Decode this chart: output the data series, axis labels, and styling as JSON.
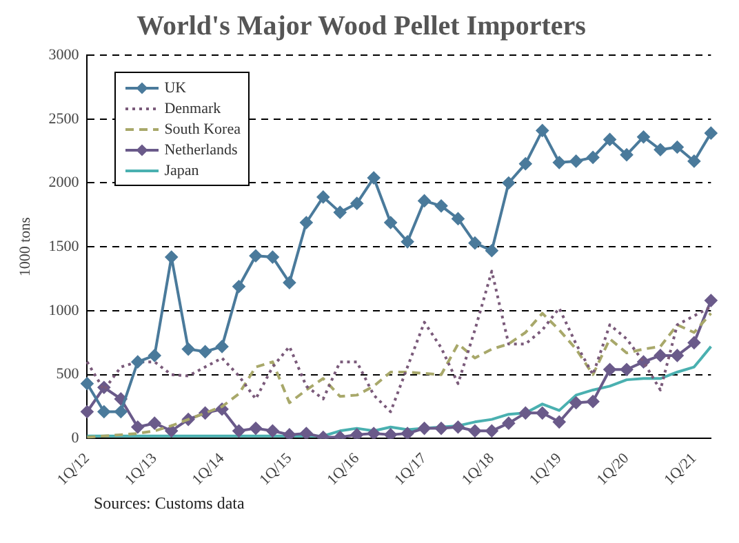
{
  "chart_data": {
    "type": "line",
    "title": "World's Major Wood Pellet Importers",
    "ylabel": "1000 tons",
    "annotations": [
      "Sources: Customs data"
    ],
    "categories": [
      "1Q/12",
      null,
      null,
      null,
      "1Q/13",
      null,
      null,
      null,
      "1Q/14",
      null,
      null,
      null,
      "1Q/15",
      null,
      null,
      null,
      "1Q/16",
      null,
      null,
      null,
      "1Q/17",
      null,
      null,
      null,
      "1Q/18",
      null,
      null,
      null,
      "1Q/19",
      null,
      null,
      null,
      "1Q/20",
      null,
      null,
      null,
      "1Q/21",
      null
    ],
    "ylim": [
      0,
      3000
    ],
    "yticks": [
      0,
      500,
      1000,
      1500,
      2000,
      2500,
      3000
    ],
    "grid": "y",
    "legend": "top left",
    "series": [
      {
        "name": "UK",
        "color": "#4a7a9b",
        "marker": "diamond",
        "line_style": "solid",
        "values": [
          430,
          210,
          210,
          600,
          650,
          1420,
          700,
          680,
          720,
          1190,
          1430,
          1420,
          1220,
          1690,
          1890,
          1770,
          1840,
          2040,
          1690,
          1540,
          1860,
          1820,
          1720,
          1530,
          1470,
          2000,
          2150,
          2410,
          2160,
          2170,
          2200,
          2340,
          2220,
          2360,
          2260,
          2280,
          2170,
          2390
        ]
      },
      {
        "name": "Denmark",
        "color": "#7a5a7a",
        "marker": "none",
        "line_style": "dotted",
        "values": [
          600,
          380,
          560,
          600,
          600,
          500,
          490,
          560,
          630,
          490,
          310,
          560,
          720,
          410,
          310,
          600,
          600,
          340,
          210,
          560,
          910,
          710,
          430,
          850,
          1310,
          740,
          740,
          850,
          1020,
          740,
          500,
          890,
          780,
          600,
          380,
          890,
          960,
          1030
        ]
      },
      {
        "name": "South Korea",
        "color": "#a8a86a",
        "marker": "none",
        "line_style": "dashed",
        "values": [
          10,
          20,
          30,
          40,
          60,
          100,
          150,
          200,
          250,
          350,
          560,
          600,
          280,
          380,
          470,
          330,
          340,
          410,
          520,
          520,
          510,
          500,
          740,
          630,
          700,
          740,
          830,
          980,
          850,
          700,
          500,
          780,
          670,
          700,
          720,
          890,
          830,
          980
        ]
      },
      {
        "name": "Netherlands",
        "color": "#6a5a8a",
        "marker": "diamond",
        "line_style": "solid",
        "values": [
          210,
          400,
          310,
          90,
          120,
          60,
          150,
          200,
          230,
          60,
          80,
          60,
          30,
          40,
          10,
          10,
          30,
          40,
          30,
          40,
          80,
          80,
          90,
          60,
          60,
          120,
          200,
          200,
          130,
          280,
          290,
          540,
          540,
          600,
          650,
          650,
          750,
          1080
        ]
      },
      {
        "name": "Japan",
        "color": "#4ab0b0",
        "marker": "none",
        "line_style": "solid",
        "values": [
          20,
          20,
          20,
          20,
          20,
          20,
          20,
          20,
          20,
          20,
          20,
          20,
          20,
          20,
          20,
          60,
          80,
          60,
          90,
          70,
          80,
          90,
          100,
          130,
          150,
          190,
          200,
          270,
          220,
          340,
          380,
          410,
          460,
          470,
          470,
          520,
          560,
          720
        ]
      }
    ]
  }
}
